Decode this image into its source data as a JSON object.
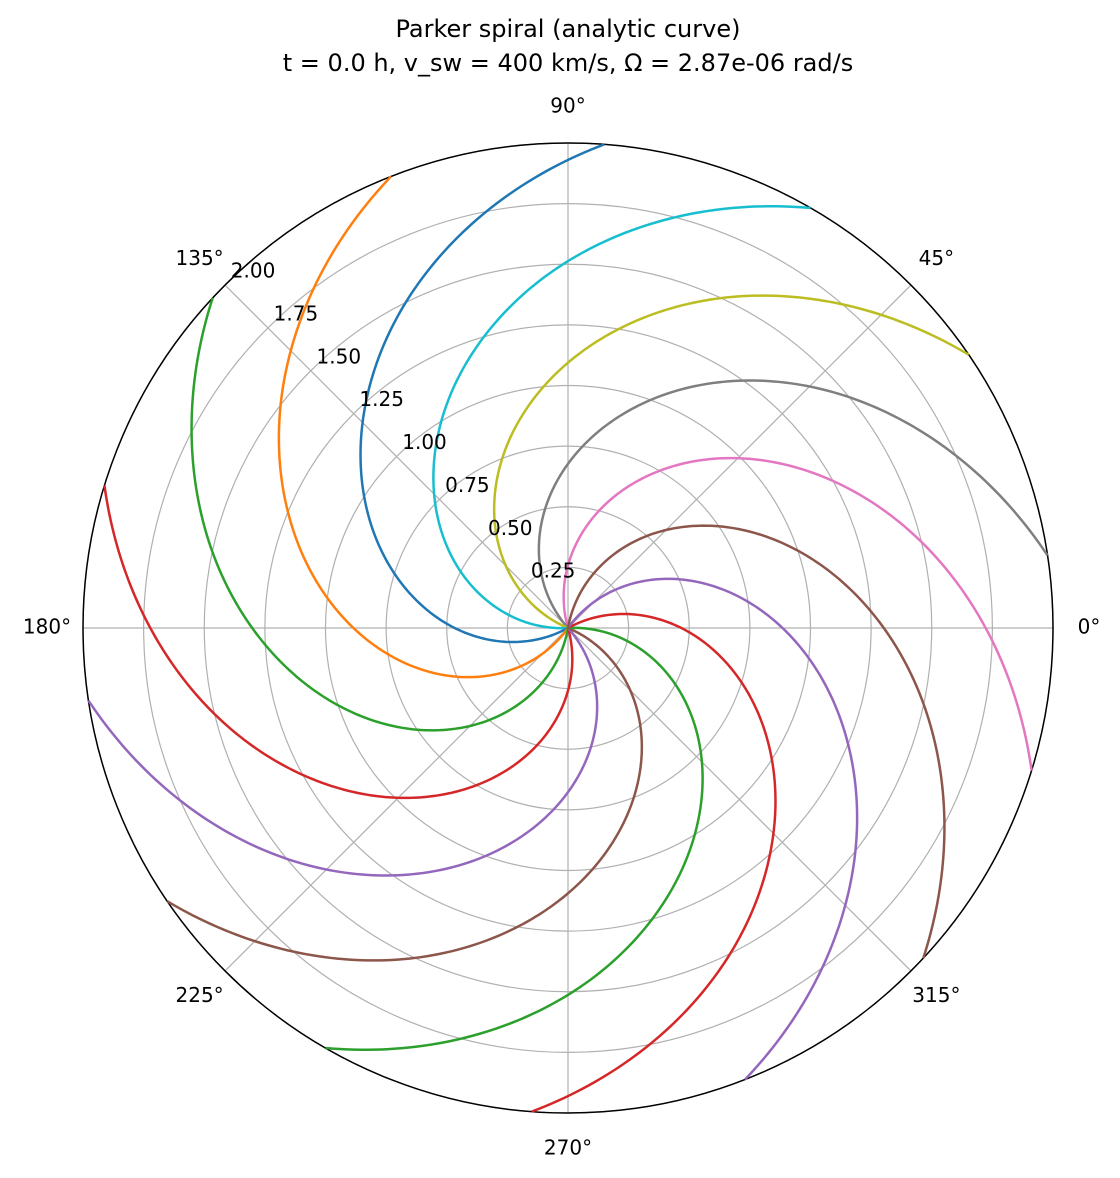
{
  "chart_data": {
    "type": "polar-line",
    "title": "Parker spiral (analytic curve)",
    "subtitle": "t = 0.0 h, v_sw = 400 km/s, Ω = 2.87e-06 rad/s",
    "rlim": [
      0,
      2
    ],
    "rticks": [
      0.25,
      {
        "value": 0.5,
        "label": "0.50"
      },
      0.75,
      {
        "value": 1,
        "label": "1.00"
      },
      1.25,
      {
        "value": 1.5,
        "label": "1.50"
      },
      1.75,
      {
        "value": 2,
        "label": "2.00"
      }
    ],
    "thetaticks": [
      {
        "value": 0,
        "label": "0°"
      },
      {
        "value": 45,
        "label": "45°"
      },
      {
        "value": 90,
        "label": "90°"
      },
      {
        "value": 135,
        "label": "135°"
      },
      {
        "value": 180,
        "label": "180°"
      },
      {
        "value": 225,
        "label": "225°"
      },
      {
        "value": 270,
        "label": "270°"
      },
      {
        "value": 315,
        "label": "315°"
      }
    ],
    "grid": true,
    "r": [
      0,
      0.25,
      0.5,
      0.75,
      1,
      1.25,
      1.5,
      1.75,
      2
    ],
    "series": [
      {
        "color": "#e377c2",
        "theta": [
          105.9,
          90.5,
          75.2,
          59.8,
          44.4,
          29.0,
          13.7,
          -1.7,
          -17.1
        ]
      },
      {
        "color": "#7f7f7f",
        "theta": [
          131.6,
          116.2,
          100.9,
          85.5,
          70.1,
          54.7,
          39.4,
          24.0,
          8.6
        ]
      },
      {
        "color": "#bcbd22",
        "theta": [
          157.3,
          141.9,
          126.6,
          111.2,
          95.8,
          80.4,
          65.1,
          49.7,
          34.3
        ]
      },
      {
        "color": "#17becf",
        "theta": [
          183.0,
          167.6,
          152.3,
          136.9,
          121.5,
          106.1,
          90.8,
          75.4,
          60.0
        ]
      },
      {
        "color": "#1f77b4",
        "theta": [
          208.7,
          193.3,
          178.0,
          162.6,
          147.2,
          131.8,
          116.5,
          101.1,
          85.7
        ]
      },
      {
        "color": "#ff7f0e",
        "theta": [
          234.4,
          219.0,
          203.7,
          188.3,
          172.9,
          157.5,
          142.2,
          126.8,
          111.4
        ]
      },
      {
        "color": "#2ca02c",
        "theta": [
          260.1,
          244.7,
          229.4,
          214.0,
          198.6,
          183.2,
          167.9,
          152.5,
          137.1
        ]
      },
      {
        "color": "#d62728",
        "theta": [
          285.9,
          270.5,
          255.2,
          239.8,
          224.4,
          209.0,
          193.7,
          178.3,
          162.9
        ]
      },
      {
        "color": "#9467bd",
        "theta": [
          311.6,
          296.2,
          280.9,
          265.5,
          250.1,
          234.7,
          219.4,
          204.0,
          188.6
        ]
      },
      {
        "color": "#8c564b",
        "theta": [
          337.3,
          321.9,
          306.6,
          291.2,
          275.8,
          260.4,
          245.1,
          229.7,
          214.3
        ]
      },
      {
        "color": "#2ca02c",
        "theta": [
          3.0,
          -12.4,
          -27.7,
          -43.1,
          -58.5,
          -73.9,
          -89.2,
          -104.6,
          -120.0
        ]
      },
      {
        "color": "#d62728",
        "theta": [
          28.7,
          13.3,
          -2.0,
          -17.4,
          -32.8,
          -48.2,
          -63.5,
          -78.9,
          -94.3
        ]
      },
      {
        "color": "#9467bd",
        "theta": [
          54.4,
          39.0,
          23.7,
          8.3,
          -7.1,
          -22.5,
          -37.8,
          -53.2,
          -68.6
        ]
      },
      {
        "color": "#8c564b",
        "theta": [
          80.1,
          64.7,
          49.4,
          34.0,
          18.6,
          3.2,
          -12.1,
          -27.5,
          -42.9
        ]
      }
    ]
  }
}
